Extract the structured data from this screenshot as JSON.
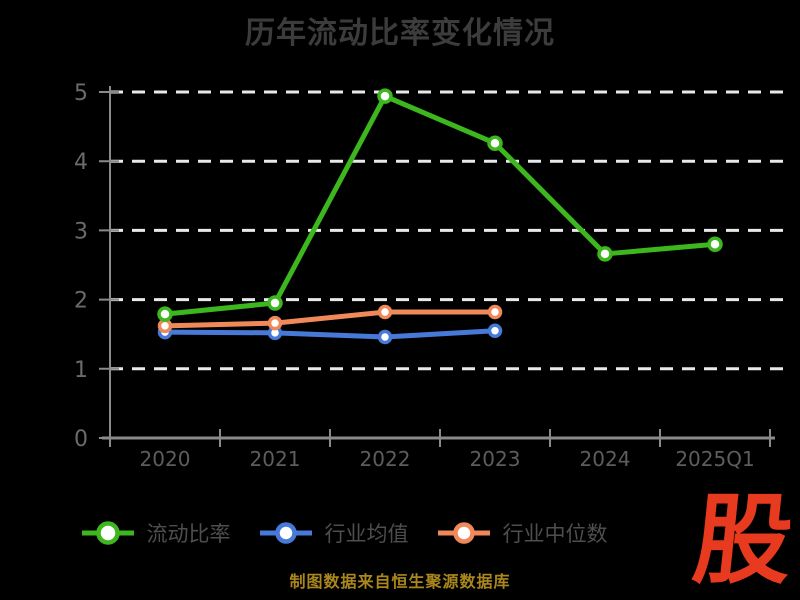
{
  "title": "历年流动比率变化情况",
  "footer_note": "制图数据来自恒生聚源数据库",
  "logo_text": "股",
  "colors": {
    "background": "#000000",
    "title": "#3c3c3c",
    "axis": "#8a8a8a",
    "grid": "#e9e9e9",
    "axis_label": "#5d5d5d",
    "ytick_label": "#6b6b6b",
    "legend_text": "#4e4e4e",
    "footer": "#aa871c",
    "logo": "#e83a1e",
    "marker_fill": "#ffffff"
  },
  "chart_data": {
    "type": "line",
    "title": "历年流动比率变化情况",
    "categories": [
      "2020",
      "2021",
      "2022",
      "2023",
      "2024",
      "2025Q1"
    ],
    "series": [
      {
        "name": "流动比率",
        "color": "#3cb71e",
        "values": [
          1.79,
          1.95,
          4.94,
          4.26,
          2.66,
          2.8
        ]
      },
      {
        "name": "行业均值",
        "color": "#4779d9",
        "values": [
          1.53,
          1.52,
          1.46,
          1.55,
          null,
          null
        ]
      },
      {
        "name": "行业中位数",
        "color": "#f0895a",
        "values": [
          1.62,
          1.66,
          1.82,
          1.82,
          null,
          null
        ]
      }
    ],
    "xlabel": "",
    "ylabel": "",
    "ylim": [
      0,
      5
    ],
    "yticks": [
      0,
      1,
      2,
      3,
      4,
      5
    ],
    "grid": "horizontal-dashed",
    "legend_position": "bottom",
    "marker_style": "white-filled-circle-colored-ring"
  }
}
